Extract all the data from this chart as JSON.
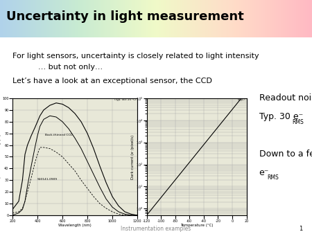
{
  "title": "Uncertainty in light measurement",
  "title_fontsize": 13,
  "bg_color": "#ffffff",
  "body_text_line1": "For light sensors, uncertainty is closely related to light intensity",
  "body_text_line2": "… but not only…",
  "body_text_line3": "Let’s have a look at an exceptional sensor, the CCD",
  "readout_line1": "Readout noise",
  "readout_line2": "Typ. 30 e⁻",
  "readout_sub2": "RMS",
  "readout_line3": "Down to a few",
  "readout_line4": "e⁻",
  "readout_sub4": "RMS",
  "footer_text": "Instrumentation examples",
  "footer_page": "1",
  "text_fontsize": 8,
  "readout_fontsize": 9,
  "header_left_color": "#b8cce8",
  "header_mid_color": "#ffffc0",
  "header_right_color": "#ffb8c8",
  "plot_bg": "#e8e8d8"
}
